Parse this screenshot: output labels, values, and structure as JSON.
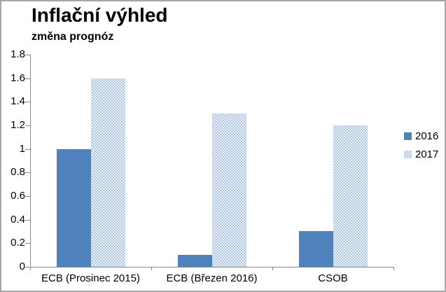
{
  "window": {
    "background": "#ffffff",
    "border_color": "#a6a6a6"
  },
  "header": {
    "title": "Inflační výhled",
    "subtitle": "změna prognóz"
  },
  "chart_data": {
    "type": "bar",
    "title": "Inflační výhled",
    "subtitle": "změna prognóz",
    "categories": [
      "ECB (Prosinec 2015)",
      "ECB (Březen 2016)",
      "CSOB"
    ],
    "series": [
      {
        "name": "2016",
        "values": [
          1.0,
          0.1,
          0.3
        ],
        "fill": "solid",
        "color": "#4F81BD"
      },
      {
        "name": "2017",
        "values": [
          1.6,
          1.3,
          1.2
        ],
        "fill": "dotted-pattern",
        "color": "#aec6e1"
      }
    ],
    "xlabel": "",
    "ylabel": "",
    "ylim": [
      0,
      1.8
    ],
    "ytick_step": 0.2,
    "yticks": [
      "0",
      "0.2",
      "0.4",
      "0.6",
      "0.8",
      "1",
      "1.2",
      "1.4",
      "1.6",
      "1.8"
    ],
    "grid": false,
    "legend_position": "right",
    "legend_entries": [
      "2016",
      "2017"
    ],
    "axis_color": "#898989"
  }
}
